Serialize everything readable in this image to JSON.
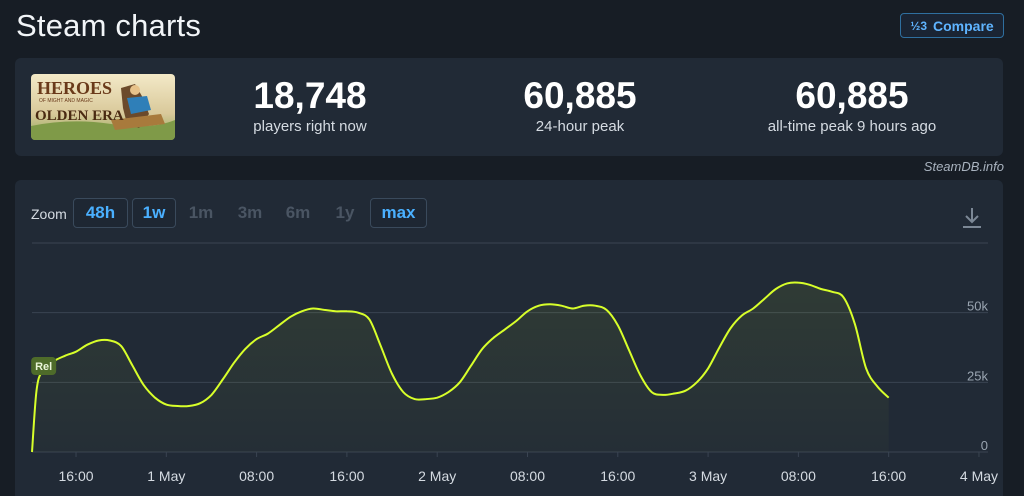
{
  "header": {
    "title": "Steam charts",
    "compare_label": "Compare",
    "compare_icon": "½3"
  },
  "stats": {
    "banner": {
      "line1": "HEROES",
      "line2": "OF MIGHT AND MAGIC",
      "line3": "OLDEN ERA"
    },
    "items": [
      {
        "value": "18,748",
        "label": "players right now"
      },
      {
        "value": "60,885",
        "label": "24-hour peak"
      },
      {
        "value": "60,885",
        "label": "all-time peak 9 hours ago"
      }
    ]
  },
  "credit": "SteamDB.info",
  "zoom": {
    "label": "Zoom",
    "buttons": [
      {
        "label": "48h",
        "state": "active"
      },
      {
        "label": "1w",
        "state": "active"
      },
      {
        "label": "1m",
        "state": "disabled"
      },
      {
        "label": "3m",
        "state": "disabled"
      },
      {
        "label": "6m",
        "state": "disabled"
      },
      {
        "label": "1y",
        "state": "disabled"
      },
      {
        "label": "max",
        "state": "active"
      }
    ]
  },
  "colors": {
    "line": "#d8ff2a",
    "grid": "#3a4452",
    "marker_bg": "#4e6b2a"
  },
  "chart_data": {
    "type": "line",
    "title": "",
    "xlabel": "",
    "ylabel": "",
    "ylim": [
      0,
      75000
    ],
    "y_ticks": [
      {
        "value": 0,
        "label": "0"
      },
      {
        "value": 25000,
        "label": "25k"
      },
      {
        "value": 50000,
        "label": "50k"
      }
    ],
    "x_ticks": [
      {
        "hour": 16,
        "label": "16:00"
      },
      {
        "hour": 24,
        "label": "1 May"
      },
      {
        "hour": 32,
        "label": "08:00"
      },
      {
        "hour": 40,
        "label": "16:00"
      },
      {
        "hour": 48,
        "label": "2 May"
      },
      {
        "hour": 56,
        "label": "08:00"
      },
      {
        "hour": 64,
        "label": "16:00"
      },
      {
        "hour": 72,
        "label": "3 May"
      },
      {
        "hour": 80,
        "label": "08:00"
      },
      {
        "hour": 88,
        "label": "16:00"
      },
      {
        "hour": 96,
        "label": "4 May"
      }
    ],
    "xlim": [
      12.1,
      96.8
    ],
    "marker": {
      "hour": 13,
      "label": "Rel"
    },
    "series": [
      {
        "points": [
          [
            12.1,
            0
          ],
          [
            12.5,
            22000
          ],
          [
            13.0,
            29000
          ],
          [
            14.0,
            32500
          ],
          [
            15.0,
            34500
          ],
          [
            16.0,
            36000
          ],
          [
            17.0,
            38500
          ],
          [
            18.0,
            40000
          ],
          [
            19.0,
            40000
          ],
          [
            20.0,
            38000
          ],
          [
            21.0,
            31000
          ],
          [
            22.0,
            24000
          ],
          [
            23.0,
            19500
          ],
          [
            24.0,
            17000
          ],
          [
            25.0,
            16500
          ],
          [
            26.0,
            16500
          ],
          [
            27.0,
            17500
          ],
          [
            28.0,
            20500
          ],
          [
            29.0,
            26000
          ],
          [
            30.0,
            32000
          ],
          [
            31.0,
            37000
          ],
          [
            32.0,
            40500
          ],
          [
            33.0,
            42500
          ],
          [
            34.0,
            45500
          ],
          [
            35.0,
            48500
          ],
          [
            36.0,
            50500
          ],
          [
            37.0,
            51500
          ],
          [
            38.0,
            51000
          ],
          [
            39.0,
            50500
          ],
          [
            40.0,
            50500
          ],
          [
            41.0,
            50000
          ],
          [
            42.0,
            47500
          ],
          [
            43.0,
            38000
          ],
          [
            44.0,
            28000
          ],
          [
            45.0,
            21500
          ],
          [
            46.0,
            19000
          ],
          [
            47.0,
            19000
          ],
          [
            48.0,
            19500
          ],
          [
            49.0,
            21500
          ],
          [
            50.0,
            25000
          ],
          [
            51.0,
            31000
          ],
          [
            52.0,
            37000
          ],
          [
            53.0,
            41000
          ],
          [
            54.0,
            44000
          ],
          [
            55.0,
            47000
          ],
          [
            56.0,
            50500
          ],
          [
            57.0,
            52500
          ],
          [
            58.0,
            53000
          ],
          [
            59.0,
            52500
          ],
          [
            60.0,
            51500
          ],
          [
            61.0,
            52500
          ],
          [
            62.0,
            52500
          ],
          [
            63.0,
            51000
          ],
          [
            64.0,
            45500
          ],
          [
            65.0,
            36500
          ],
          [
            66.0,
            27500
          ],
          [
            67.0,
            21500
          ],
          [
            68.0,
            20500
          ],
          [
            69.0,
            21000
          ],
          [
            70.0,
            22000
          ],
          [
            71.0,
            25000
          ],
          [
            72.0,
            30000
          ],
          [
            73.0,
            37500
          ],
          [
            74.0,
            44500
          ],
          [
            75.0,
            49000
          ],
          [
            76.0,
            51500
          ],
          [
            77.0,
            55000
          ],
          [
            78.0,
            58500
          ],
          [
            79.0,
            60500
          ],
          [
            80.0,
            60800
          ],
          [
            81.0,
            60000
          ],
          [
            82.0,
            58500
          ],
          [
            83.0,
            57500
          ],
          [
            84.0,
            55500
          ],
          [
            85.0,
            46000
          ],
          [
            86.0,
            30000
          ],
          [
            87.0,
            23500
          ],
          [
            88.0,
            19500
          ]
        ]
      }
    ]
  }
}
